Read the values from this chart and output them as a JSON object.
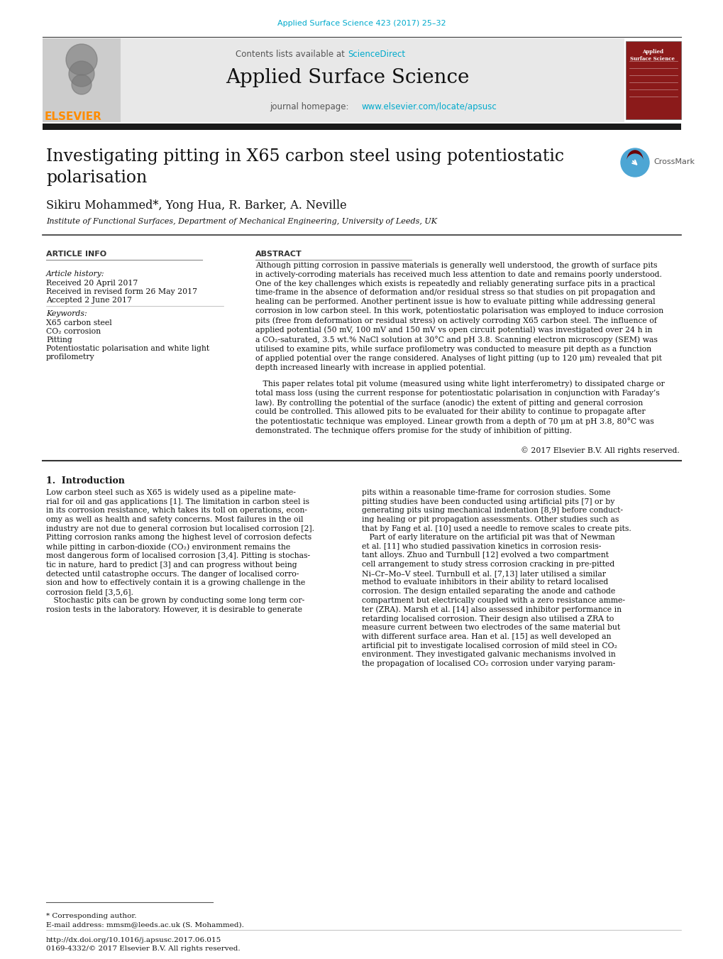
{
  "page_bg": "#ffffff",
  "top_journal_ref": "Applied Surface Science 423 (2017) 25–32",
  "top_journal_ref_color": "#00AACC",
  "header_bg": "#e8e8e8",
  "header_journal_name": "Applied Surface Science",
  "header_contents_text": "Contents lists available at ",
  "header_science_direct": "ScienceDirect",
  "header_science_direct_color": "#00AACC",
  "header_homepage_text": "journal homepage: ",
  "header_homepage_url": "www.elsevier.com/locate/apsusc",
  "header_homepage_url_color": "#00AACC",
  "elsevier_color": "#FF8C00",
  "black_bar_color": "#1a1a1a",
  "article_title": "Investigating pitting in X65 carbon steel using potentiostatic\npolarisation",
  "authors": "Sikiru Mohammed*, Yong Hua, R. Barker, A. Neville",
  "affiliation": "Institute of Functional Surfaces, Department of Mechanical Engineering, University of Leeds, UK",
  "section_article_info": "ARTICLE INFO",
  "section_abstract": "ABSTRACT",
  "article_history_label": "Article history:",
  "received_date": "Received 20 April 2017",
  "received_revised": "Received in revised form 26 May 2017",
  "accepted": "Accepted 2 June 2017",
  "keywords_label": "Keywords:",
  "keywords": [
    "X65 carbon steel",
    "CO₂ corrosion",
    "Pitting",
    "Potentiostatic polarisation and white light",
    "profilometry"
  ],
  "abstract_p1": "Although pitting corrosion in passive materials is generally well understood, the growth of surface pits in actively-corroding materials has received much less attention to date and remains poorly understood. One of the key challenges which exists is repeatedly and reliably generating surface pits in a practical time-frame in the absence of deformation and/or residual stress so that studies on pit propagation and healing can be performed. Another pertinent issue is how to evaluate pitting while addressing general corrosion in low carbon steel. In this work, potentiostatic polarisation was employed to induce corrosion pits (free from deformation or residual stress) on actively corroding X65 carbon steel. The influence of applied potential (50 mV, 100 mV and 150 mV vs open circuit potential) was investigated over 24 h in a CO₂-saturated, 3.5 wt.% NaCl solution at 30°C and pH 3.8. Scanning electron microscopy (SEM) was utilised to examine pits, while surface profilometry was conducted to measure pit depth as a function of applied potential over the range considered. Analyses of light pitting (up to 120 μm) revealed that pit depth increased linearly with increase in applied potential.",
  "abstract_p2": "This paper relates total pit volume (measured using white light interferometry) to dissipated charge or total mass loss (using the current response for potentiostatic polarisation in conjunction with Faraday’s law). By controlling the potential of the surface (anodic) the extent of pitting and general corrosion could be controlled. This allowed pits to be evaluated for their ability to continue to propagate after the potentiostatic technique was employed. Linear growth from a depth of 70 μm at pH 3.8, 80°C was demonstrated. The technique offers promise for the study of inhibition of pitting.",
  "abstract_copyright": "© 2017 Elsevier B.V. All rights reserved.",
  "intro_title": "1. Introduction",
  "intro_col1": "Low carbon steel such as X65 is widely used as a pipeline material for oil and gas applications [1]. The limitation in carbon steel is in its corrosion resistance, which takes its toll on operations, economy as well as health and safety concerns. Most failures in the oil industry are not due to general corrosion but localised corrosion [2]. Pitting corrosion ranks among the highest level of corrosion defects while pitting in carbon-dioxide (CO₂) environment remains the most dangerous form of localised corrosion [3,4]. Pitting is stochastic in nature, hard to predict [3] and can progress without being detected until catastrophe occurs. The danger of localised corrosion and how to effectively contain it is a growing challenge in the corrosion field [3,5,6].\n   Stochastic pits can be grown by conducting some long term corrosion tests in the laboratory. However, it is desirable to generate",
  "intro_col2": "pits within a reasonable time-frame for corrosion studies. Some pitting studies have been conducted using artificial pits [7] or by generating pits using mechanical indentation [8,9] before conducting healing or pit propagation assessments. Other studies such as that by Fang et al. [10] used a needle to remove scales to create pits.\n   Part of early literature on the artificial pit was that of Newman et al. [11] who studied passivation kinetics in corrosion resistant alloys. Zhuo and Turnbull [12] evolved a two compartment cell arrangement to study stress corrosion cracking in pre-pitted Ni–Cr–Mo–V steel. Turnbull et al. [7,13] later utilised a similar method to evaluate inhibitors in their ability to retard localised corrosion. The design entailed separating the anode and cathode compartment but electrically coupled with a zero resistance ammeter (ZRA). Marsh et al. [14] also assessed inhibitor performance in retarding localised corrosion. Their design also utilised a ZRA to measure current between two electrodes of the same material but with different surface area. Han et al. [15] as well developed an artificial pit to investigate localised corrosion of mild steel in CO₂ environment. They investigated galvanic mechanisms involved in the propagation of localised CO₂ corrosion under varying param-",
  "footnote_corresponding": "* Corresponding author.",
  "footnote_email": "E-mail address: mmsm@leeds.ac.uk (S. Mohammed).",
  "footnote_doi": "http://dx.doi.org/10.1016/j.apsusc.2017.06.015",
  "footnote_issn": "0169-4332/© 2017 Elsevier B.V. All rights reserved."
}
